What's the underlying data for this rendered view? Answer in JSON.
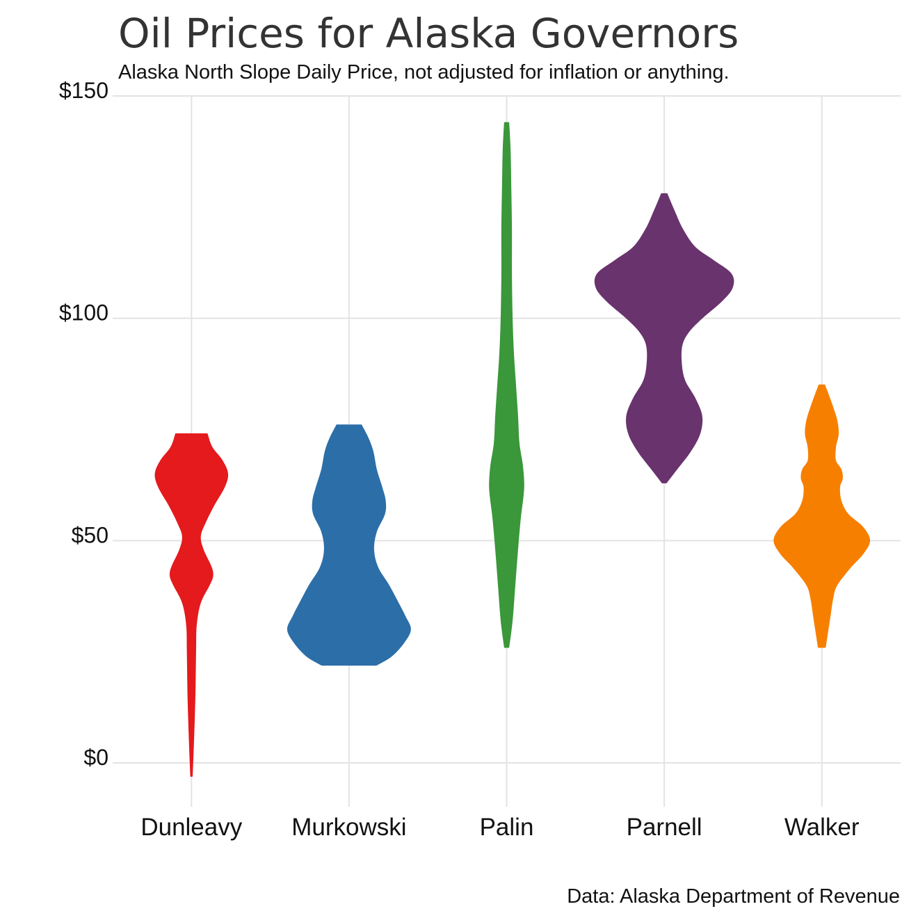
{
  "chart_data": {
    "type": "violin",
    "title": "Oil Prices for Alaska Governors",
    "subtitle": "Alaska North Slope Daily Price, not adjusted for inflation or anything.",
    "caption": "Data: Alaska Department of Revenue",
    "xlabel": "",
    "ylabel": "",
    "ylim": [
      0,
      150
    ],
    "y_ticks": [
      {
        "value": 0,
        "label": "$0"
      },
      {
        "value": 50,
        "label": "$50"
      },
      {
        "value": 100,
        "label": "$100"
      },
      {
        "value": 150,
        "label": "$150"
      }
    ],
    "grid": true,
    "legend": "none",
    "categories": [
      "Dunleavy",
      "Murkowski",
      "Palin",
      "Parnell",
      "Walker"
    ],
    "series": [
      {
        "color": "#e41a1c",
        "min": -3,
        "max": 74,
        "density_profile": [
          [
            -3,
            0.01
          ],
          [
            5,
            0.03
          ],
          [
            15,
            0.05
          ],
          [
            25,
            0.06
          ],
          [
            31,
            0.07
          ],
          [
            36,
            0.13
          ],
          [
            40,
            0.26
          ],
          [
            42,
            0.31
          ],
          [
            44,
            0.29
          ],
          [
            48,
            0.17
          ],
          [
            51,
            0.13
          ],
          [
            54,
            0.2
          ],
          [
            58,
            0.33
          ],
          [
            62,
            0.48
          ],
          [
            65,
            0.53
          ],
          [
            68,
            0.45
          ],
          [
            71,
            0.3
          ],
          [
            74,
            0.23
          ]
        ]
      },
      {
        "color": "#2c6ea8",
        "min": 22,
        "max": 76,
        "density_profile": [
          [
            22,
            0.4
          ],
          [
            24,
            0.62
          ],
          [
            27,
            0.8
          ],
          [
            30,
            0.9
          ],
          [
            33,
            0.82
          ],
          [
            36,
            0.72
          ],
          [
            40,
            0.58
          ],
          [
            44,
            0.42
          ],
          [
            48,
            0.36
          ],
          [
            52,
            0.4
          ],
          [
            56,
            0.52
          ],
          [
            59,
            0.53
          ],
          [
            62,
            0.48
          ],
          [
            66,
            0.4
          ],
          [
            70,
            0.35
          ],
          [
            73,
            0.28
          ],
          [
            76,
            0.18
          ]
        ]
      },
      {
        "color": "#3a973a",
        "min": 26,
        "max": 144,
        "density_profile": [
          [
            26,
            0.03
          ],
          [
            32,
            0.08
          ],
          [
            40,
            0.12
          ],
          [
            48,
            0.16
          ],
          [
            55,
            0.2
          ],
          [
            60,
            0.24
          ],
          [
            63,
            0.25
          ],
          [
            67,
            0.23
          ],
          [
            72,
            0.18
          ],
          [
            78,
            0.16
          ],
          [
            85,
            0.13
          ],
          [
            92,
            0.1
          ],
          [
            100,
            0.08
          ],
          [
            110,
            0.07
          ],
          [
            120,
            0.07
          ],
          [
            130,
            0.06
          ],
          [
            138,
            0.05
          ],
          [
            144,
            0.03
          ]
        ]
      },
      {
        "color": "#69336e",
        "min": 63,
        "max": 128,
        "density_profile": [
          [
            63,
            0.03
          ],
          [
            66,
            0.18
          ],
          [
            70,
            0.38
          ],
          [
            74,
            0.52
          ],
          [
            78,
            0.55
          ],
          [
            82,
            0.45
          ],
          [
            86,
            0.3
          ],
          [
            90,
            0.25
          ],
          [
            94,
            0.26
          ],
          [
            97,
            0.36
          ],
          [
            100,
            0.55
          ],
          [
            104,
            0.85
          ],
          [
            107,
            1.0
          ],
          [
            110,
            0.98
          ],
          [
            113,
            0.72
          ],
          [
            116,
            0.45
          ],
          [
            120,
            0.27
          ],
          [
            124,
            0.15
          ],
          [
            128,
            0.04
          ]
        ]
      },
      {
        "color": "#f77f00",
        "min": 26,
        "max": 85,
        "density_profile": [
          [
            26,
            0.05
          ],
          [
            29,
            0.08
          ],
          [
            33,
            0.12
          ],
          [
            37,
            0.16
          ],
          [
            40,
            0.22
          ],
          [
            44,
            0.42
          ],
          [
            47,
            0.6
          ],
          [
            50,
            0.7
          ],
          [
            53,
            0.6
          ],
          [
            56,
            0.38
          ],
          [
            59,
            0.28
          ],
          [
            62,
            0.26
          ],
          [
            64,
            0.3
          ],
          [
            66,
            0.28
          ],
          [
            68,
            0.2
          ],
          [
            71,
            0.2
          ],
          [
            74,
            0.24
          ],
          [
            77,
            0.22
          ],
          [
            80,
            0.16
          ],
          [
            83,
            0.09
          ],
          [
            85,
            0.04
          ]
        ]
      }
    ]
  }
}
